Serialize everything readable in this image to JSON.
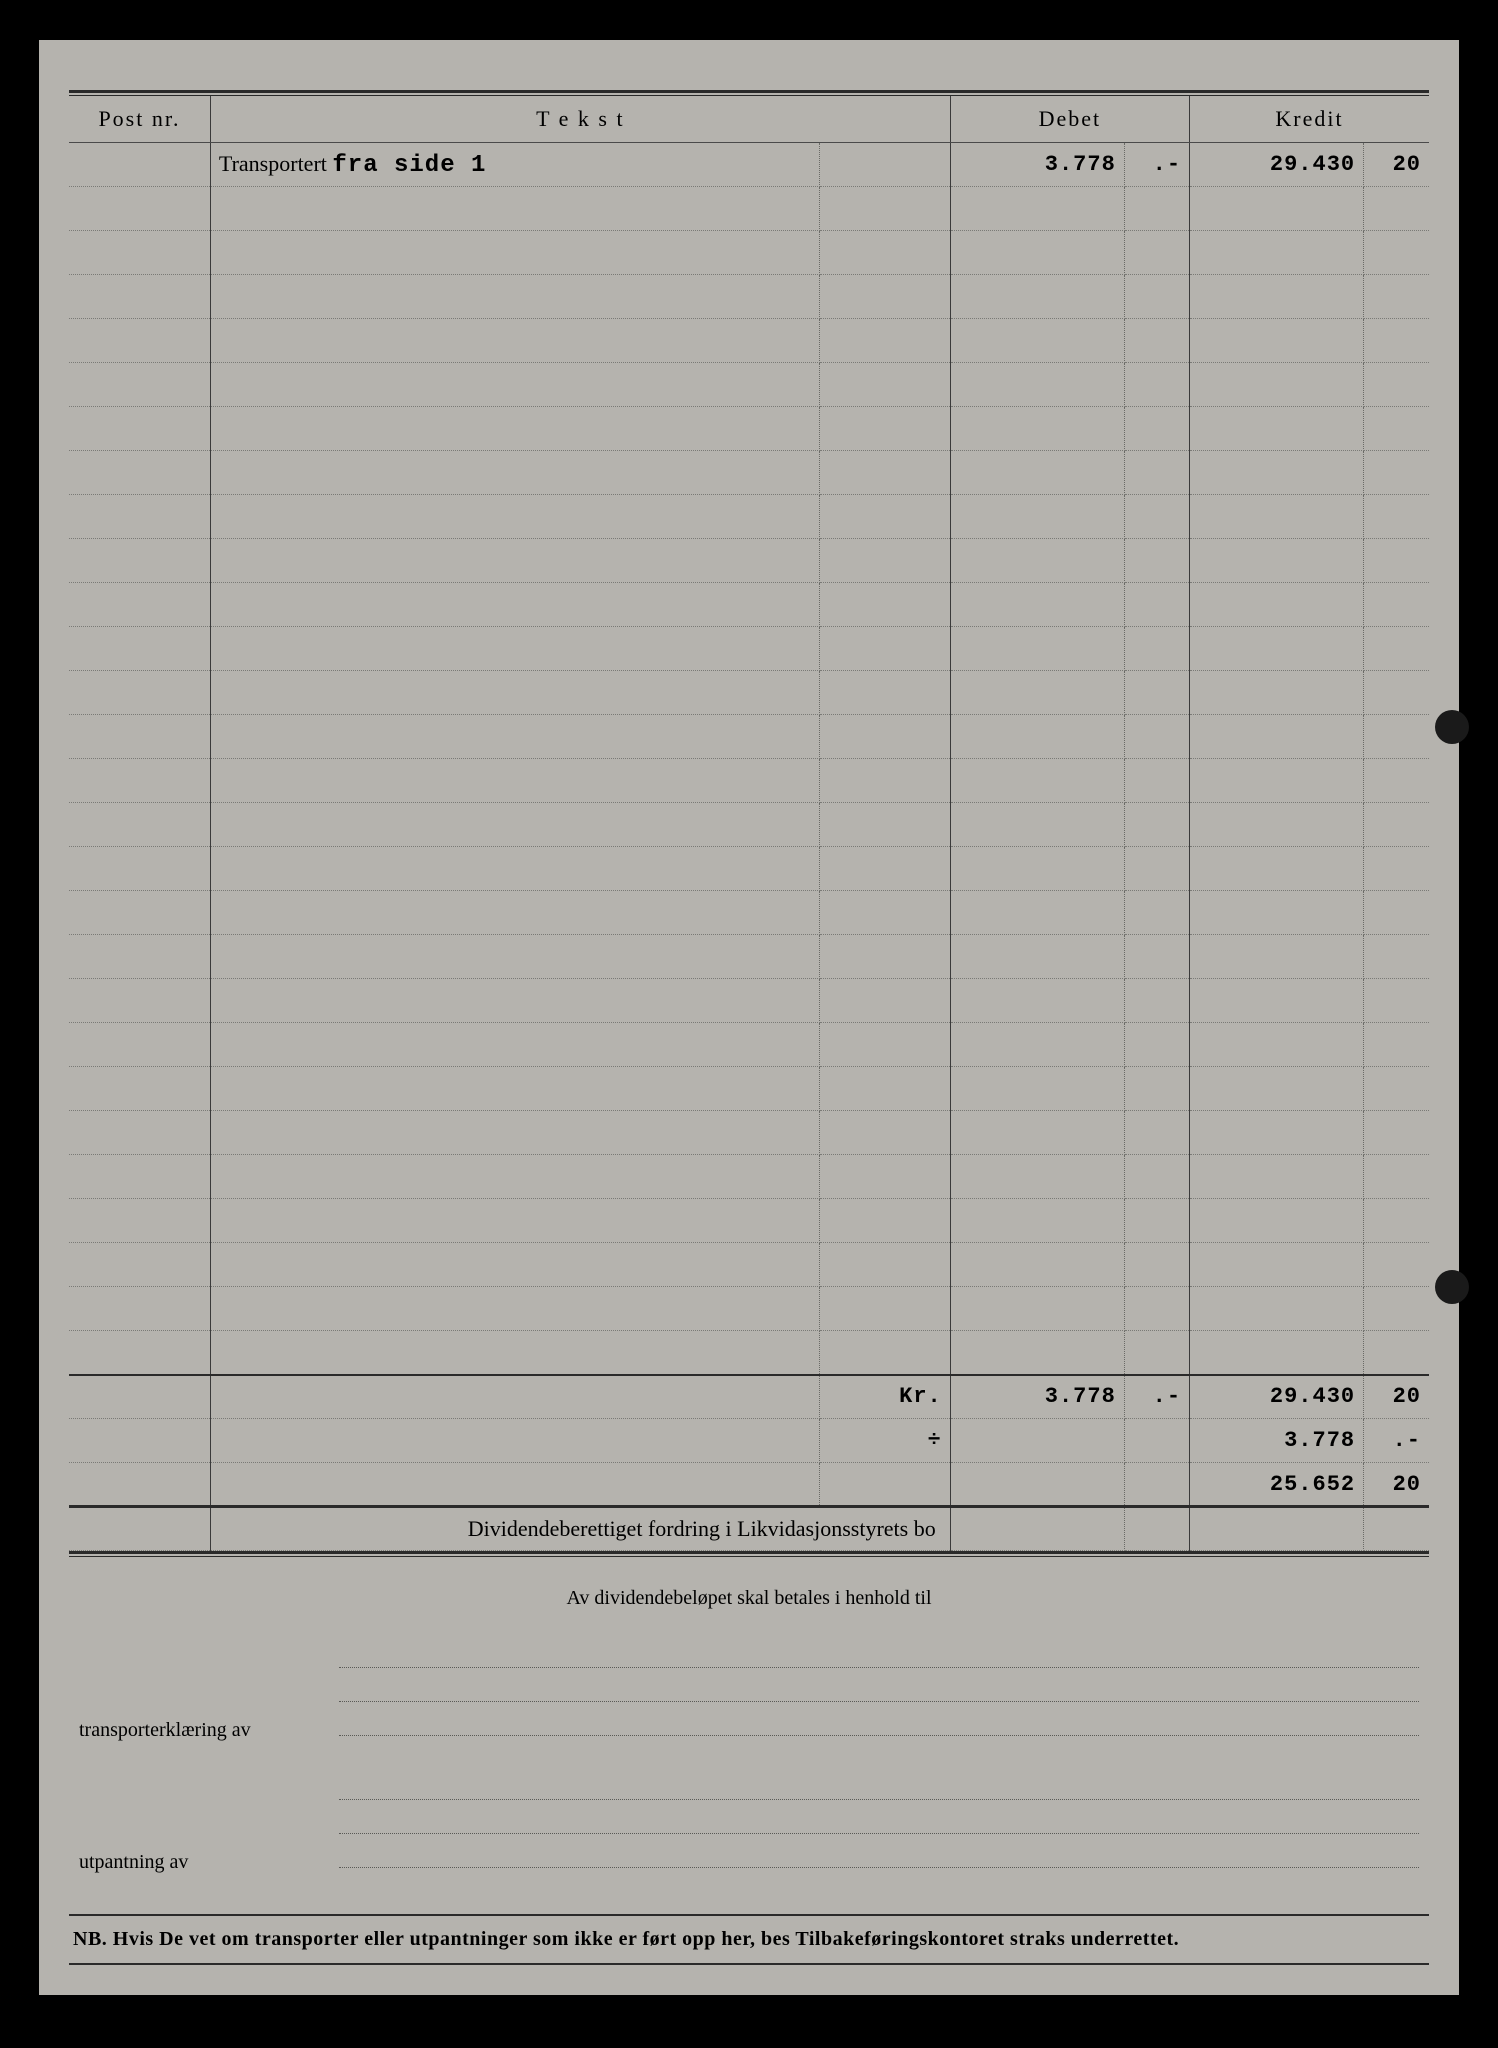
{
  "colors": {
    "page_bg": "#b5b3ae",
    "frame_bg": "#000000",
    "rule": "#2a2a2a",
    "dotted": "#7a7a76",
    "text": "#1f1f1f"
  },
  "headers": {
    "post_nr": "Post nr.",
    "tekst": "T e k s t",
    "debet": "Debet",
    "kredit": "Kredit"
  },
  "transport": {
    "label": "Transportert",
    "typed_note": "fra side 1",
    "debet_main": "3.778",
    "debet_cents": ".-",
    "kredit_main": "29.430",
    "kredit_cents": "20"
  },
  "blank_row_count": 27,
  "totals": {
    "row1": {
      "prefix": "Kr.",
      "debet_main": "3.778",
      "debet_cents": ".-",
      "kredit_main": "29.430",
      "kredit_cents": "20"
    },
    "row2": {
      "prefix": "÷",
      "debet_main": "",
      "debet_cents": "",
      "kredit_main": "3.778",
      "kredit_cents": ".-"
    },
    "row3": {
      "prefix": "",
      "debet_main": "",
      "debet_cents": "",
      "kredit_main": "25.652",
      "kredit_cents": "20"
    }
  },
  "dividend_line": "Dividendeberettiget fordring i Likvidasjonsstyrets bo",
  "footer_centered": "Av dividendebeløpet skal betales i henhold til",
  "form": {
    "transporterklaering": "transporterklæring av",
    "utpantning": "utpantning        av"
  },
  "nb_text": "NB.  Hvis De vet om transporter eller utpantninger som ikke er ført opp her, bes Tilbakeføringskontoret straks underrettet."
}
